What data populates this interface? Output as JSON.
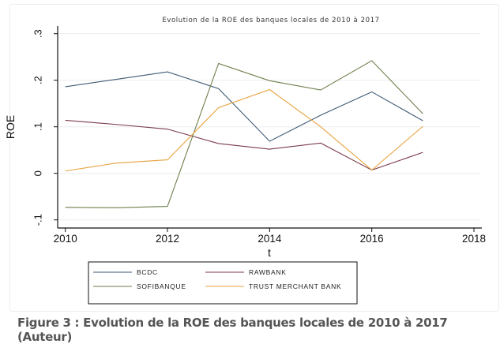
{
  "chart_data": {
    "type": "line",
    "title": "Evolution de la ROE des banques locales de 2010 à 2017",
    "xlabel": "t",
    "ylabel": "ROE",
    "x": [
      2010,
      2011,
      2012,
      2013,
      2014,
      2015,
      2016,
      2017
    ],
    "xlim": [
      2010,
      2018
    ],
    "ylim": [
      -0.1,
      0.3
    ],
    "xticks": [
      "2010",
      "2012",
      "2014",
      "2016",
      "2018"
    ],
    "yticks": [
      "-.1",
      "0",
      ".1",
      ".2",
      ".3"
    ],
    "grid": true,
    "legend_position": "bottom",
    "series": [
      {
        "name": "BCDC",
        "color": "#3f5b76",
        "values": [
          0.186,
          0.202,
          0.218,
          0.182,
          0.069,
          0.125,
          0.175,
          0.113
        ]
      },
      {
        "name": "RAWBANK",
        "color": "#7b3b4b",
        "values": [
          0.114,
          0.105,
          0.095,
          0.064,
          0.052,
          0.065,
          0.007,
          0.045
        ]
      },
      {
        "name": "SOFIBANQUE",
        "color": "#6e7f4c",
        "values": [
          -0.073,
          -0.074,
          -0.071,
          0.236,
          0.199,
          0.179,
          0.242,
          0.128
        ]
      },
      {
        "name": "TRUST MERCHANT BANK",
        "color": "#e8a23f",
        "values": [
          0.005,
          0.022,
          0.029,
          0.141,
          0.18,
          0.1,
          0.007,
          0.101
        ]
      }
    ]
  },
  "caption": "Figure 3 : Evolution de la ROE des banques locales de 2010 à 2017 (Auteur)"
}
